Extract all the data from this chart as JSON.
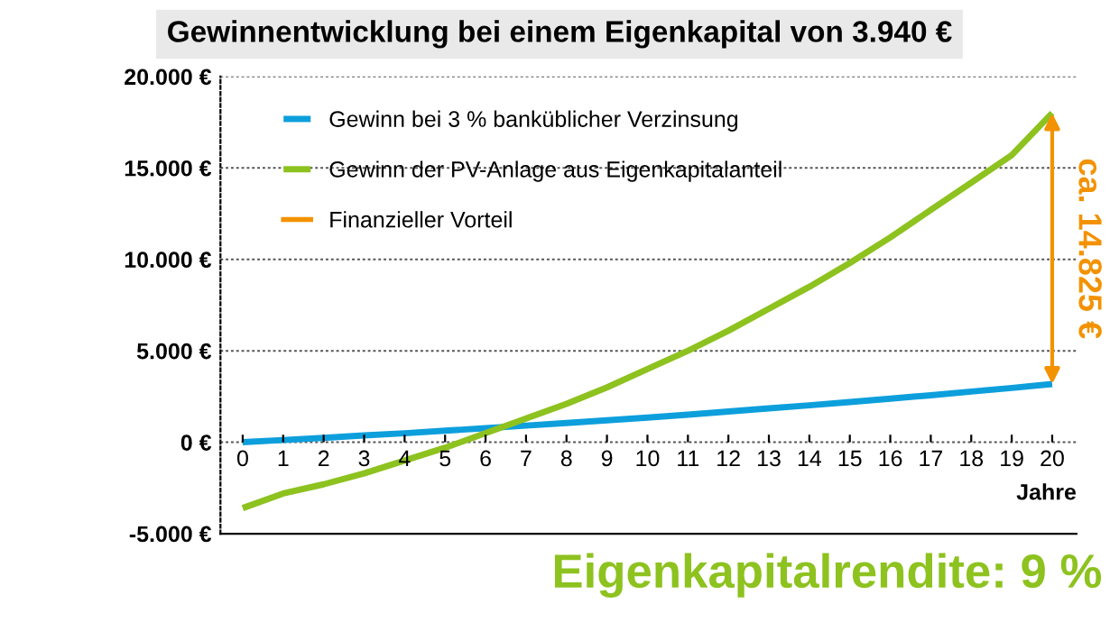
{
  "chart_data": {
    "type": "line",
    "title": "Gewinnentwicklung bei einem Eigenkapital von 3.940 €",
    "xlabel": "Jahre",
    "x": [
      0,
      1,
      2,
      3,
      4,
      5,
      6,
      7,
      8,
      9,
      10,
      11,
      12,
      13,
      14,
      15,
      16,
      17,
      18,
      19,
      20
    ],
    "series": [
      {
        "name": "Gewinn bei 3 % banküblicher Verzinsung",
        "color": "#0d9fdc",
        "values": [
          0,
          120,
          240,
          370,
          490,
          630,
          770,
          910,
          1050,
          1200,
          1350,
          1510,
          1680,
          1850,
          2020,
          2200,
          2380,
          2570,
          2770,
          2970,
          3180
        ]
      },
      {
        "name": "Gewinn der PV-Anlage aus Eigenkapitalanteil",
        "color": "#8dc21f",
        "values": [
          -3600,
          -2800,
          -2300,
          -1700,
          -1000,
          -300,
          500,
          1300,
          2100,
          3000,
          4000,
          5000,
          6100,
          7300,
          8500,
          9800,
          11200,
          12700,
          14200,
          15700,
          18000
        ]
      }
    ],
    "annotations": [
      "Finanzieller Vorteil",
      "ca. 14.825 €",
      "Eigenkapitalrendite: 9 %"
    ],
    "xlim": [
      -0.55,
      20.6
    ],
    "ylim": [
      -5000,
      20000
    ],
    "xticks": [
      0,
      1,
      2,
      3,
      4,
      5,
      6,
      7,
      8,
      9,
      10,
      11,
      12,
      13,
      14,
      15,
      16,
      17,
      18,
      19,
      20
    ],
    "yticks": [
      {
        "value": -5000,
        "label": "-5.000 €"
      },
      {
        "value": 0,
        "label": "0 €"
      },
      {
        "value": 5000,
        "label": "5.000 €"
      },
      {
        "value": 10000,
        "label": "10.000 €"
      },
      {
        "value": 15000,
        "label": "15.000 €"
      },
      {
        "value": 20000,
        "label": "20.000 €"
      }
    ],
    "grid": "y",
    "legend": "top left"
  }
}
